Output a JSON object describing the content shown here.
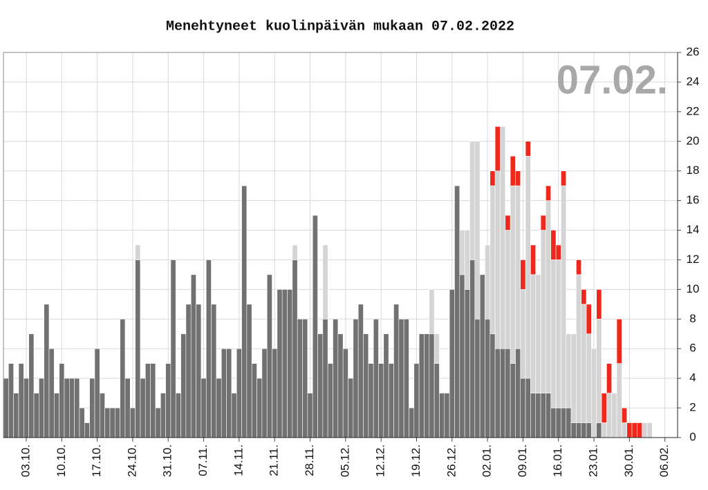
{
  "chart_data": {
    "type": "bar",
    "stacked": true,
    "title": "Menehtyneet kuolinpäivän mukaan 07.02.2022",
    "annotation": "07.02.",
    "categories": [
      null,
      null,
      null,
      null,
      "03.10.",
      null,
      null,
      null,
      null,
      null,
      null,
      "10.10.",
      null,
      null,
      null,
      null,
      null,
      null,
      "17.10.",
      null,
      null,
      null,
      null,
      null,
      null,
      "24.10.",
      null,
      null,
      null,
      null,
      null,
      null,
      "31.10.",
      null,
      null,
      null,
      null,
      null,
      null,
      "07.11.",
      null,
      null,
      null,
      null,
      null,
      null,
      "14.11.",
      null,
      null,
      null,
      null,
      null,
      null,
      "21.11.",
      null,
      null,
      null,
      null,
      null,
      null,
      "28.11.",
      null,
      null,
      null,
      null,
      null,
      null,
      "05.12.",
      null,
      null,
      null,
      null,
      null,
      null,
      "12.12.",
      null,
      null,
      null,
      null,
      null,
      null,
      "19.12.",
      null,
      null,
      null,
      null,
      null,
      null,
      "26.12.",
      null,
      null,
      null,
      null,
      null,
      null,
      "02.01.",
      null,
      null,
      null,
      null,
      null,
      null,
      "09.01.",
      null,
      null,
      null,
      null,
      null,
      null,
      "16.01.",
      null,
      null,
      null,
      null,
      null,
      null,
      "23.01.",
      null,
      null,
      null,
      null,
      null,
      null,
      "30.01.",
      null,
      null,
      null,
      null,
      null,
      null,
      "06.02.",
      null,
      null
    ],
    "series": [
      {
        "color": "#717171",
        "values": [
          4,
          5,
          3,
          5,
          4,
          7,
          3,
          4,
          9,
          6,
          3,
          5,
          4,
          4,
          4,
          2,
          1,
          4,
          6,
          3,
          2,
          2,
          2,
          8,
          4,
          2,
          12,
          4,
          5,
          5,
          2,
          3,
          5,
          12,
          3,
          7,
          9,
          11,
          9,
          4,
          12,
          9,
          4,
          6,
          6,
          3,
          6,
          17,
          9,
          5,
          4,
          6,
          11,
          6,
          10,
          10,
          10,
          12,
          8,
          8,
          3,
          15,
          7,
          8,
          5,
          8,
          7,
          6,
          4,
          8,
          9,
          7,
          5,
          8,
          5,
          7,
          5,
          9,
          8,
          8,
          2,
          5,
          7,
          7,
          7,
          5,
          3,
          3,
          10,
          17,
          11,
          10,
          12,
          8,
          11,
          8,
          7,
          6,
          6,
          6,
          5,
          6,
          4,
          4,
          3,
          3,
          3,
          3,
          2,
          2,
          2,
          2,
          1,
          1,
          1,
          1,
          0,
          1,
          0,
          0,
          0,
          0,
          0,
          0,
          0,
          0,
          0,
          0,
          0,
          0,
          0,
          0,
          0
        ]
      },
      {
        "color": "#d4d4d4",
        "values": [
          0,
          0,
          0,
          0,
          0,
          0,
          0,
          0,
          0,
          0,
          0,
          0,
          0,
          0,
          0,
          0,
          0,
          0,
          0,
          0,
          0,
          0,
          0,
          0,
          0,
          0,
          1,
          0,
          0,
          0,
          0,
          0,
          0,
          0,
          0,
          0,
          0,
          0,
          0,
          0,
          0,
          0,
          0,
          0,
          0,
          0,
          0,
          0,
          0,
          0,
          0,
          0,
          0,
          0,
          0,
          0,
          0,
          1,
          0,
          0,
          0,
          0,
          0,
          5,
          0,
          0,
          0,
          0,
          0,
          0,
          0,
          0,
          0,
          0,
          0,
          0,
          0,
          0,
          0,
          0,
          0,
          0,
          0,
          0,
          3,
          2,
          0,
          0,
          0,
          0,
          3,
          4,
          8,
          12,
          0,
          5,
          10,
          12,
          15,
          8,
          12,
          11,
          6,
          15,
          8,
          8,
          11,
          13,
          10,
          10,
          15,
          5,
          6,
          10,
          8,
          6,
          6,
          7,
          1,
          3,
          3,
          5,
          1,
          0,
          0,
          0,
          1,
          1,
          0,
          0,
          0,
          0,
          0
        ]
      },
      {
        "color": "#f0281c",
        "values": [
          0,
          0,
          0,
          0,
          0,
          0,
          0,
          0,
          0,
          0,
          0,
          0,
          0,
          0,
          0,
          0,
          0,
          0,
          0,
          0,
          0,
          0,
          0,
          0,
          0,
          0,
          0,
          0,
          0,
          0,
          0,
          0,
          0,
          0,
          0,
          0,
          0,
          0,
          0,
          0,
          0,
          0,
          0,
          0,
          0,
          0,
          0,
          0,
          0,
          0,
          0,
          0,
          0,
          0,
          0,
          0,
          0,
          0,
          0,
          0,
          0,
          0,
          0,
          0,
          0,
          0,
          0,
          0,
          0,
          0,
          0,
          0,
          0,
          0,
          0,
          0,
          0,
          0,
          0,
          0,
          0,
          0,
          0,
          0,
          0,
          0,
          0,
          0,
          0,
          0,
          0,
          0,
          0,
          0,
          0,
          0,
          1,
          3,
          0,
          1,
          2,
          1,
          2,
          1,
          2,
          0,
          1,
          1,
          2,
          1,
          1,
          0,
          0,
          1,
          1,
          2,
          0,
          2,
          2,
          2,
          0,
          3,
          1,
          1,
          1,
          1,
          0,
          0,
          0,
          0,
          0,
          0,
          0
        ]
      }
    ],
    "ylim": [
      0,
      26
    ],
    "yticks": [
      0,
      2,
      4,
      6,
      8,
      10,
      12,
      14,
      16,
      18,
      20,
      22,
      24,
      26
    ],
    "grid": true
  }
}
